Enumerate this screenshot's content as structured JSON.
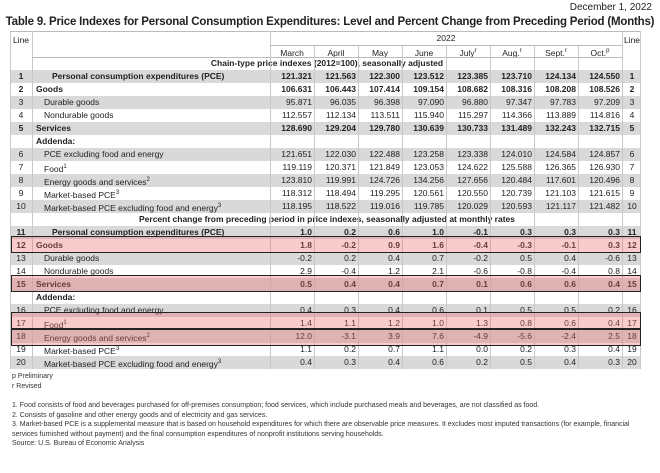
{
  "header": {
    "date": "December 1, 2022",
    "title": "Table 9. Price Indexes for Personal Consumption Expenditures: Level and Percent Change from Preceding Period (Months)",
    "line_label": "Line",
    "year": "2022",
    "months": [
      {
        "label": "March",
        "mark": ""
      },
      {
        "label": "April",
        "mark": ""
      },
      {
        "label": "May",
        "mark": ""
      },
      {
        "label": "June",
        "mark": ""
      },
      {
        "label": "July",
        "mark": "r"
      },
      {
        "label": "Aug.",
        "mark": "r"
      },
      {
        "label": "Sept.",
        "mark": "r"
      },
      {
        "label": "Oct.",
        "mark": "p"
      }
    ]
  },
  "sections": [
    {
      "caption": "Chain-type price indexes (2012=100), seasonally adjusted",
      "rows": [
        {
          "line": "1",
          "label": "Personal consumption expenditures (PCE)",
          "fn": "",
          "style": "bold-indent",
          "values": [
            "121.321",
            "121.563",
            "122.300",
            "123.512",
            "123.385",
            "123.710",
            "124.134",
            "124.550"
          ]
        },
        {
          "line": "2",
          "label": "Goods",
          "fn": "",
          "style": "bold",
          "values": [
            "106.631",
            "106.443",
            "107.414",
            "109.154",
            "108.682",
            "108.316",
            "108.208",
            "108.526"
          ]
        },
        {
          "line": "3",
          "label": "Durable goods",
          "fn": "",
          "style": "sub",
          "values": [
            "95.871",
            "96.035",
            "96.398",
            "97.090",
            "96.880",
            "97.347",
            "97.783",
            "97.209"
          ]
        },
        {
          "line": "4",
          "label": "Nondurable goods",
          "fn": "",
          "style": "sub",
          "values": [
            "112.557",
            "112.134",
            "113.511",
            "115.940",
            "115.297",
            "114.366",
            "113.889",
            "114.816"
          ]
        },
        {
          "line": "5",
          "label": "Services",
          "fn": "",
          "style": "bold",
          "values": [
            "128.690",
            "129.204",
            "129.780",
            "130.639",
            "130.733",
            "131.489",
            "132.243",
            "132.715"
          ]
        },
        {
          "line": "",
          "label": "Addenda:",
          "fn": "",
          "style": "bold",
          "values": []
        },
        {
          "line": "6",
          "label": "PCE excluding food and energy",
          "fn": "",
          "style": "sub",
          "values": [
            "121.651",
            "122.030",
            "122.488",
            "123.258",
            "123.338",
            "124.010",
            "124.584",
            "124.857"
          ]
        },
        {
          "line": "7",
          "label": "Food",
          "fn": "1",
          "style": "sub",
          "values": [
            "119.119",
            "120.371",
            "121.849",
            "123.053",
            "124.622",
            "125.588",
            "126.365",
            "126.930"
          ]
        },
        {
          "line": "8",
          "label": "Energy goods and services",
          "fn": "2",
          "style": "sub",
          "values": [
            "123.810",
            "119.991",
            "124.726",
            "134.256",
            "127.656",
            "120.484",
            "117.601",
            "120.496"
          ]
        },
        {
          "line": "9",
          "label": "Market-based PCE",
          "fn": "3",
          "style": "sub",
          "values": [
            "118.312",
            "118.494",
            "119.295",
            "120.561",
            "120.550",
            "120.739",
            "121.103",
            "121.615"
          ]
        },
        {
          "line": "10",
          "label": "Market-based PCE excluding food and energy",
          "fn": "3",
          "style": "sub",
          "values": [
            "118.195",
            "118.522",
            "119.016",
            "119.785",
            "120.029",
            "120.593",
            "121.117",
            "121.482"
          ]
        }
      ]
    },
    {
      "caption": "Percent change from preceding period in price indexes, seasonally adjusted at monthly rates",
      "rows": [
        {
          "line": "11",
          "label": "Personal consumption expenditures (PCE)",
          "fn": "",
          "style": "bold-indent",
          "values": [
            "1.0",
            "0.2",
            "0.6",
            "1.0",
            "-0.1",
            "0.3",
            "0.3",
            "0.3"
          ]
        },
        {
          "line": "12",
          "label": "Goods",
          "fn": "",
          "style": "bold",
          "highlighted": true,
          "values": [
            "1.8",
            "-0.2",
            "0.9",
            "1.6",
            "-0.4",
            "-0.3",
            "-0.1",
            "0.3"
          ]
        },
        {
          "line": "13",
          "label": "Durable goods",
          "fn": "",
          "style": "sub",
          "values": [
            "-0.2",
            "0.2",
            "0.4",
            "0.7",
            "-0.2",
            "0.5",
            "0.4",
            "-0.6"
          ]
        },
        {
          "line": "14",
          "label": "Nondurable goods",
          "fn": "",
          "style": "sub",
          "values": [
            "2.9",
            "-0.4",
            "1.2",
            "2.1",
            "-0.6",
            "-0.8",
            "-0.4",
            "0.8"
          ]
        },
        {
          "line": "15",
          "label": "Services",
          "fn": "",
          "style": "bold",
          "highlighted": true,
          "values": [
            "0.5",
            "0.4",
            "0.4",
            "0.7",
            "0.1",
            "0.6",
            "0.6",
            "0.4"
          ]
        },
        {
          "line": "",
          "label": "Addenda:",
          "fn": "",
          "style": "bold",
          "values": []
        },
        {
          "line": "16",
          "label": "PCE excluding food and energy",
          "fn": "",
          "style": "sub",
          "values": [
            "0.4",
            "0.3",
            "0.4",
            "0.6",
            "0.1",
            "0.5",
            "0.5",
            "0.2"
          ]
        },
        {
          "line": "17",
          "label": "Food",
          "fn": "1",
          "style": "sub",
          "highlighted": true,
          "values": [
            "1.4",
            "1.1",
            "1.2",
            "1.0",
            "1.3",
            "0.8",
            "0.6",
            "0.4"
          ]
        },
        {
          "line": "18",
          "label": "Energy goods and services",
          "fn": "2",
          "style": "sub",
          "highlighted": true,
          "values": [
            "12.0",
            "-3.1",
            "3.9",
            "7.6",
            "-4.9",
            "-5.6",
            "-2.4",
            "2.5"
          ]
        },
        {
          "line": "19",
          "label": "Market-based PCE",
          "fn": "3",
          "style": "sub",
          "values": [
            "1.1",
            "0.2",
            "0.7",
            "1.1",
            "0.0",
            "0.2",
            "0.3",
            "0.4"
          ]
        },
        {
          "line": "20",
          "label": "Market-based PCE excluding food and energy",
          "fn": "3",
          "style": "sub",
          "values": [
            "0.4",
            "0.3",
            "0.4",
            "0.6",
            "0.2",
            "0.5",
            "0.4",
            "0.3"
          ]
        }
      ]
    }
  ],
  "legend": {
    "preliminary": "p Preliminary",
    "revised": "r Revised"
  },
  "footnotes": [
    "1. Food consists of food and beverages purchased for off-premises consumption; food services, which include purchased meals and beverages, are not classified as food.",
    "2. Consists of gasoline and other energy goods and of electricity and gas services.",
    "3. Market-based PCE is a supplemental measure that is based on household expenditures for which there are observable price measures. It excludes most imputed transactions (for example, financial services furnished without",
    "payment) and the final consumption expenditures of nonprofit institutions serving households.",
    "Source: U.S. Bureau of Economic Analysis"
  ],
  "colors": {
    "row_shade": "#d9d9d9",
    "highlight": "#eb6e6e",
    "highlight_border": "#222222"
  }
}
